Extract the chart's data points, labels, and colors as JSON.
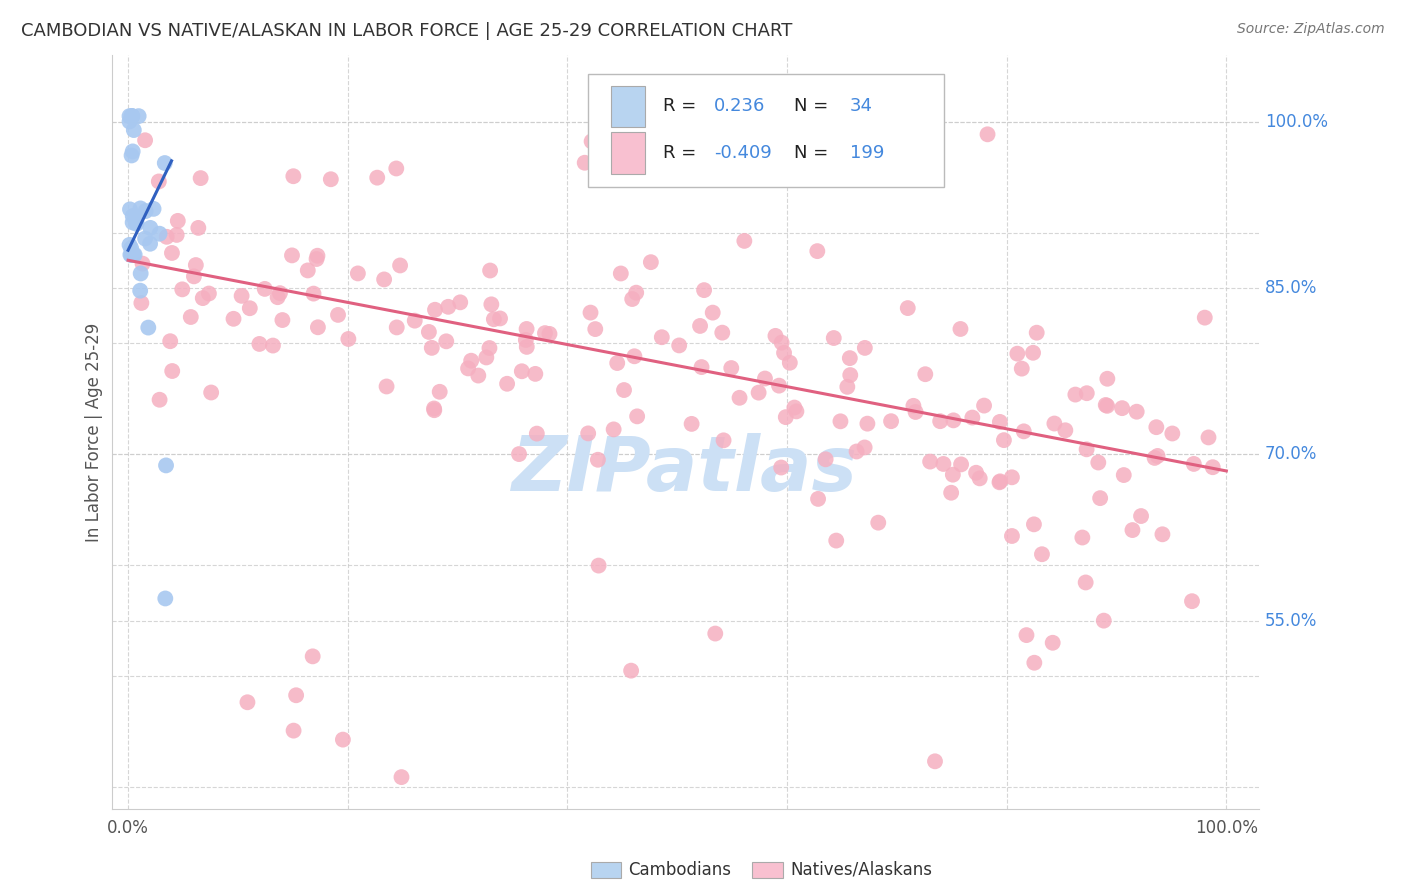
{
  "title": "CAMBODIAN VS NATIVE/ALASKAN IN LABOR FORCE | AGE 25-29 CORRELATION CHART",
  "source": "Source: ZipAtlas.com",
  "ylabel": "In Labor Force | Age 25-29",
  "r_cambodian": 0.236,
  "n_cambodian": 34,
  "r_native": -0.409,
  "n_native": 199,
  "cambodian_color": "#a8c8f0",
  "native_color": "#f5afc0",
  "trend_cambodian_color": "#3060c0",
  "trend_native_color": "#e06080",
  "background_color": "#ffffff",
  "grid_color": "#cccccc",
  "title_color": "#333333",
  "watermark_color": "#cce0f5",
  "legend_box_color_cambodian": "#b8d4f0",
  "legend_box_color_native": "#f8c0d0",
  "right_axis_color": "#4488dd",
  "ytick_positions": [
    0.55,
    0.7,
    0.85,
    1.0
  ],
  "ytick_labels": [
    "55.0%",
    "70.0%",
    "85.0%",
    "100.0%"
  ],
  "xlim": [
    -0.015,
    1.03
  ],
  "ylim": [
    0.38,
    1.06
  ]
}
